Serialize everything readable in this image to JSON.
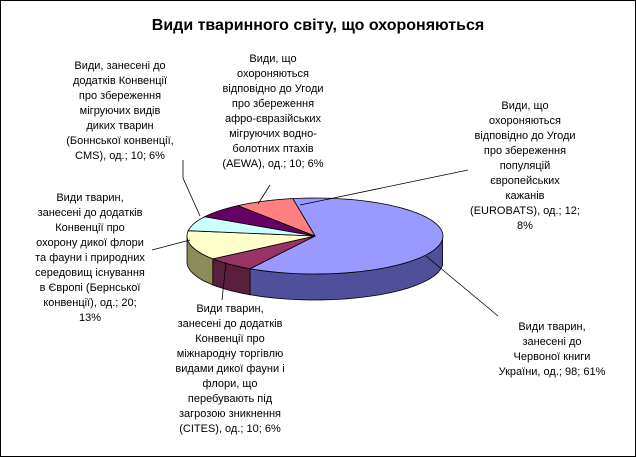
{
  "chart_data": {
    "type": "pie",
    "title": "Види тваринного світу, що охороняються",
    "slices": [
      {
        "label": "Види тварин, занесені до Червоної книги України, од.; 98; 61%",
        "value": 98,
        "percent": 61,
        "color": "#9999ff",
        "side": "#4f4f9a"
      },
      {
        "label": "Види тварин, занесені до додатків Конвенції про міжнародну торгівлю видами дикої фауни і флори, що перебувають під загрозою зникнення (CITES), од.; 10; 6%",
        "value": 10,
        "percent": 6,
        "color": "#993366",
        "side": "#5a1f3c"
      },
      {
        "label": "Види тварин, занесені до додатків Конвенції про охорону дикої флори та фауни і природних середовищ існування в Європі (Бернської конвенції), од.; 20; 13%",
        "value": 20,
        "percent": 13,
        "color": "#ffffcc",
        "side": "#8c8c5a"
      },
      {
        "label": "Види, занесені до додатків Конвенції про збереження мігруючих видів диких тварин (Боннської конвенції, CMS), од.; 10; 6%",
        "value": 10,
        "percent": 6,
        "color": "#ccffff",
        "side": "#6a8c8c"
      },
      {
        "label": "Види, що охороняються відповідно до Угоди про збереження афро-євразійських мігруючих водно-болотних птахів (AEWA), од.; 10; 6%",
        "value": 10,
        "percent": 6,
        "color": "#660066",
        "side": "#3a003a"
      },
      {
        "label": "Види, що охороняються відповідно до Угоди про збереження популяцій європейських кажанів (EUROBATS), од.; 12; 8%",
        "value": 12,
        "percent": 8,
        "color": "#ff8080",
        "side": "#9a4a4a"
      }
    ]
  },
  "labels": {
    "red_book": "Види тварин,\nзанесені до\nЧервоної книги\nУкраїни, од.; 98; 61%",
    "cites": "Види тварин,\nзанесені до додатків\nКонвенції про\nміжнародну торгівлю\nвидами дикої фауни і\nфлори, що\nперебувають під\nзагрозою зникнення\n(CITES), од.; 10; 6%",
    "bern": "Види тварин,\nзанесені до додатків\nКонвенції про\nохорону дикої флори\nта фауни і природних\nсередовищ існування\nв Європі (Бернської\nконвенції), од.; 20;\n13%",
    "cms": "Види, занесені до\nдодатків Конвенції\nпро збереження\nмігруючих видів\nдиких тварин\n(Боннської конвенції,\nCMS), од.; 10; 6%",
    "aewa": "Види, що\nохороняються\nвідповідно до Угоди\nпро збереження\nафро-євразійських\nмігруючих водно-\nболотних птахів\n(AEWA), од.; 10; 6%",
    "eurobats": "Види, що\nохороняються\nвідповідно до Угоди\nпро збереження\nпопуляцій\nєвропейських\nкажанів\n(EUROBATS), од.; 12;\n8%"
  }
}
